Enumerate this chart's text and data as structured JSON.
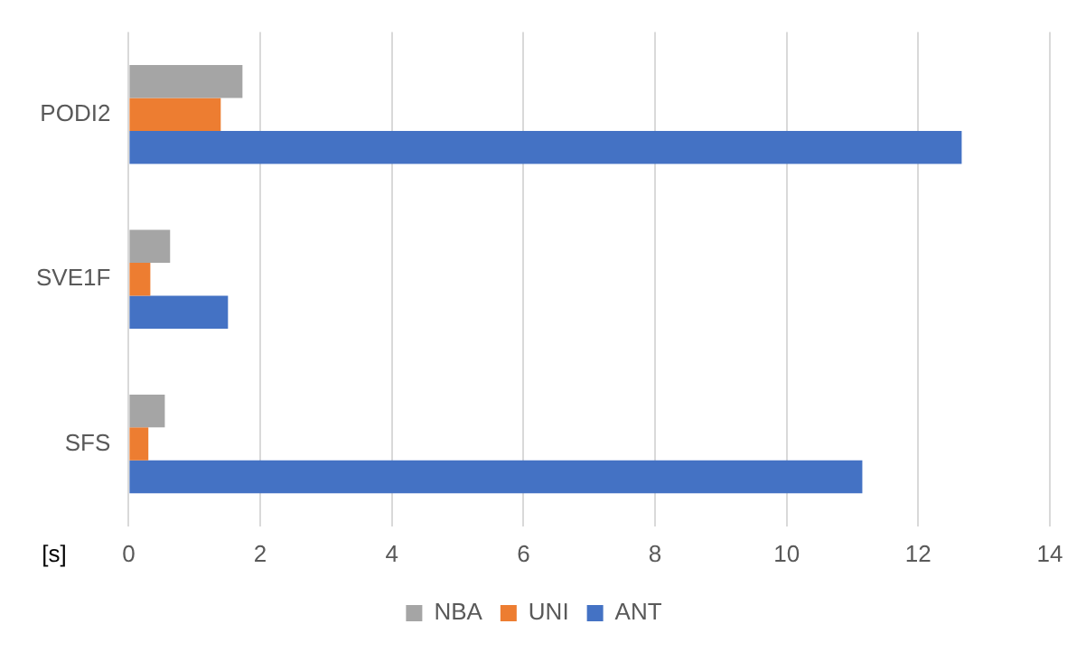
{
  "chart_data": {
    "type": "bar",
    "orientation": "horizontal",
    "xlabel": "[s]",
    "categories": [
      "PODI2",
      "SVE1F",
      "SFS"
    ],
    "series": [
      {
        "name": "NBA",
        "color": "#a5a5a5",
        "values": [
          1.73,
          0.63,
          0.55
        ]
      },
      {
        "name": "UNI",
        "color": "#ed7d31",
        "values": [
          1.4,
          0.33,
          0.3
        ]
      },
      {
        "name": "ANT",
        "color": "#4472c4",
        "values": [
          12.66,
          1.51,
          11.15
        ]
      }
    ],
    "xlim": [
      0,
      14
    ],
    "xticks": [
      0,
      2,
      4,
      6,
      8,
      10,
      12,
      14
    ],
    "grid": "x",
    "legend": "bottom"
  }
}
